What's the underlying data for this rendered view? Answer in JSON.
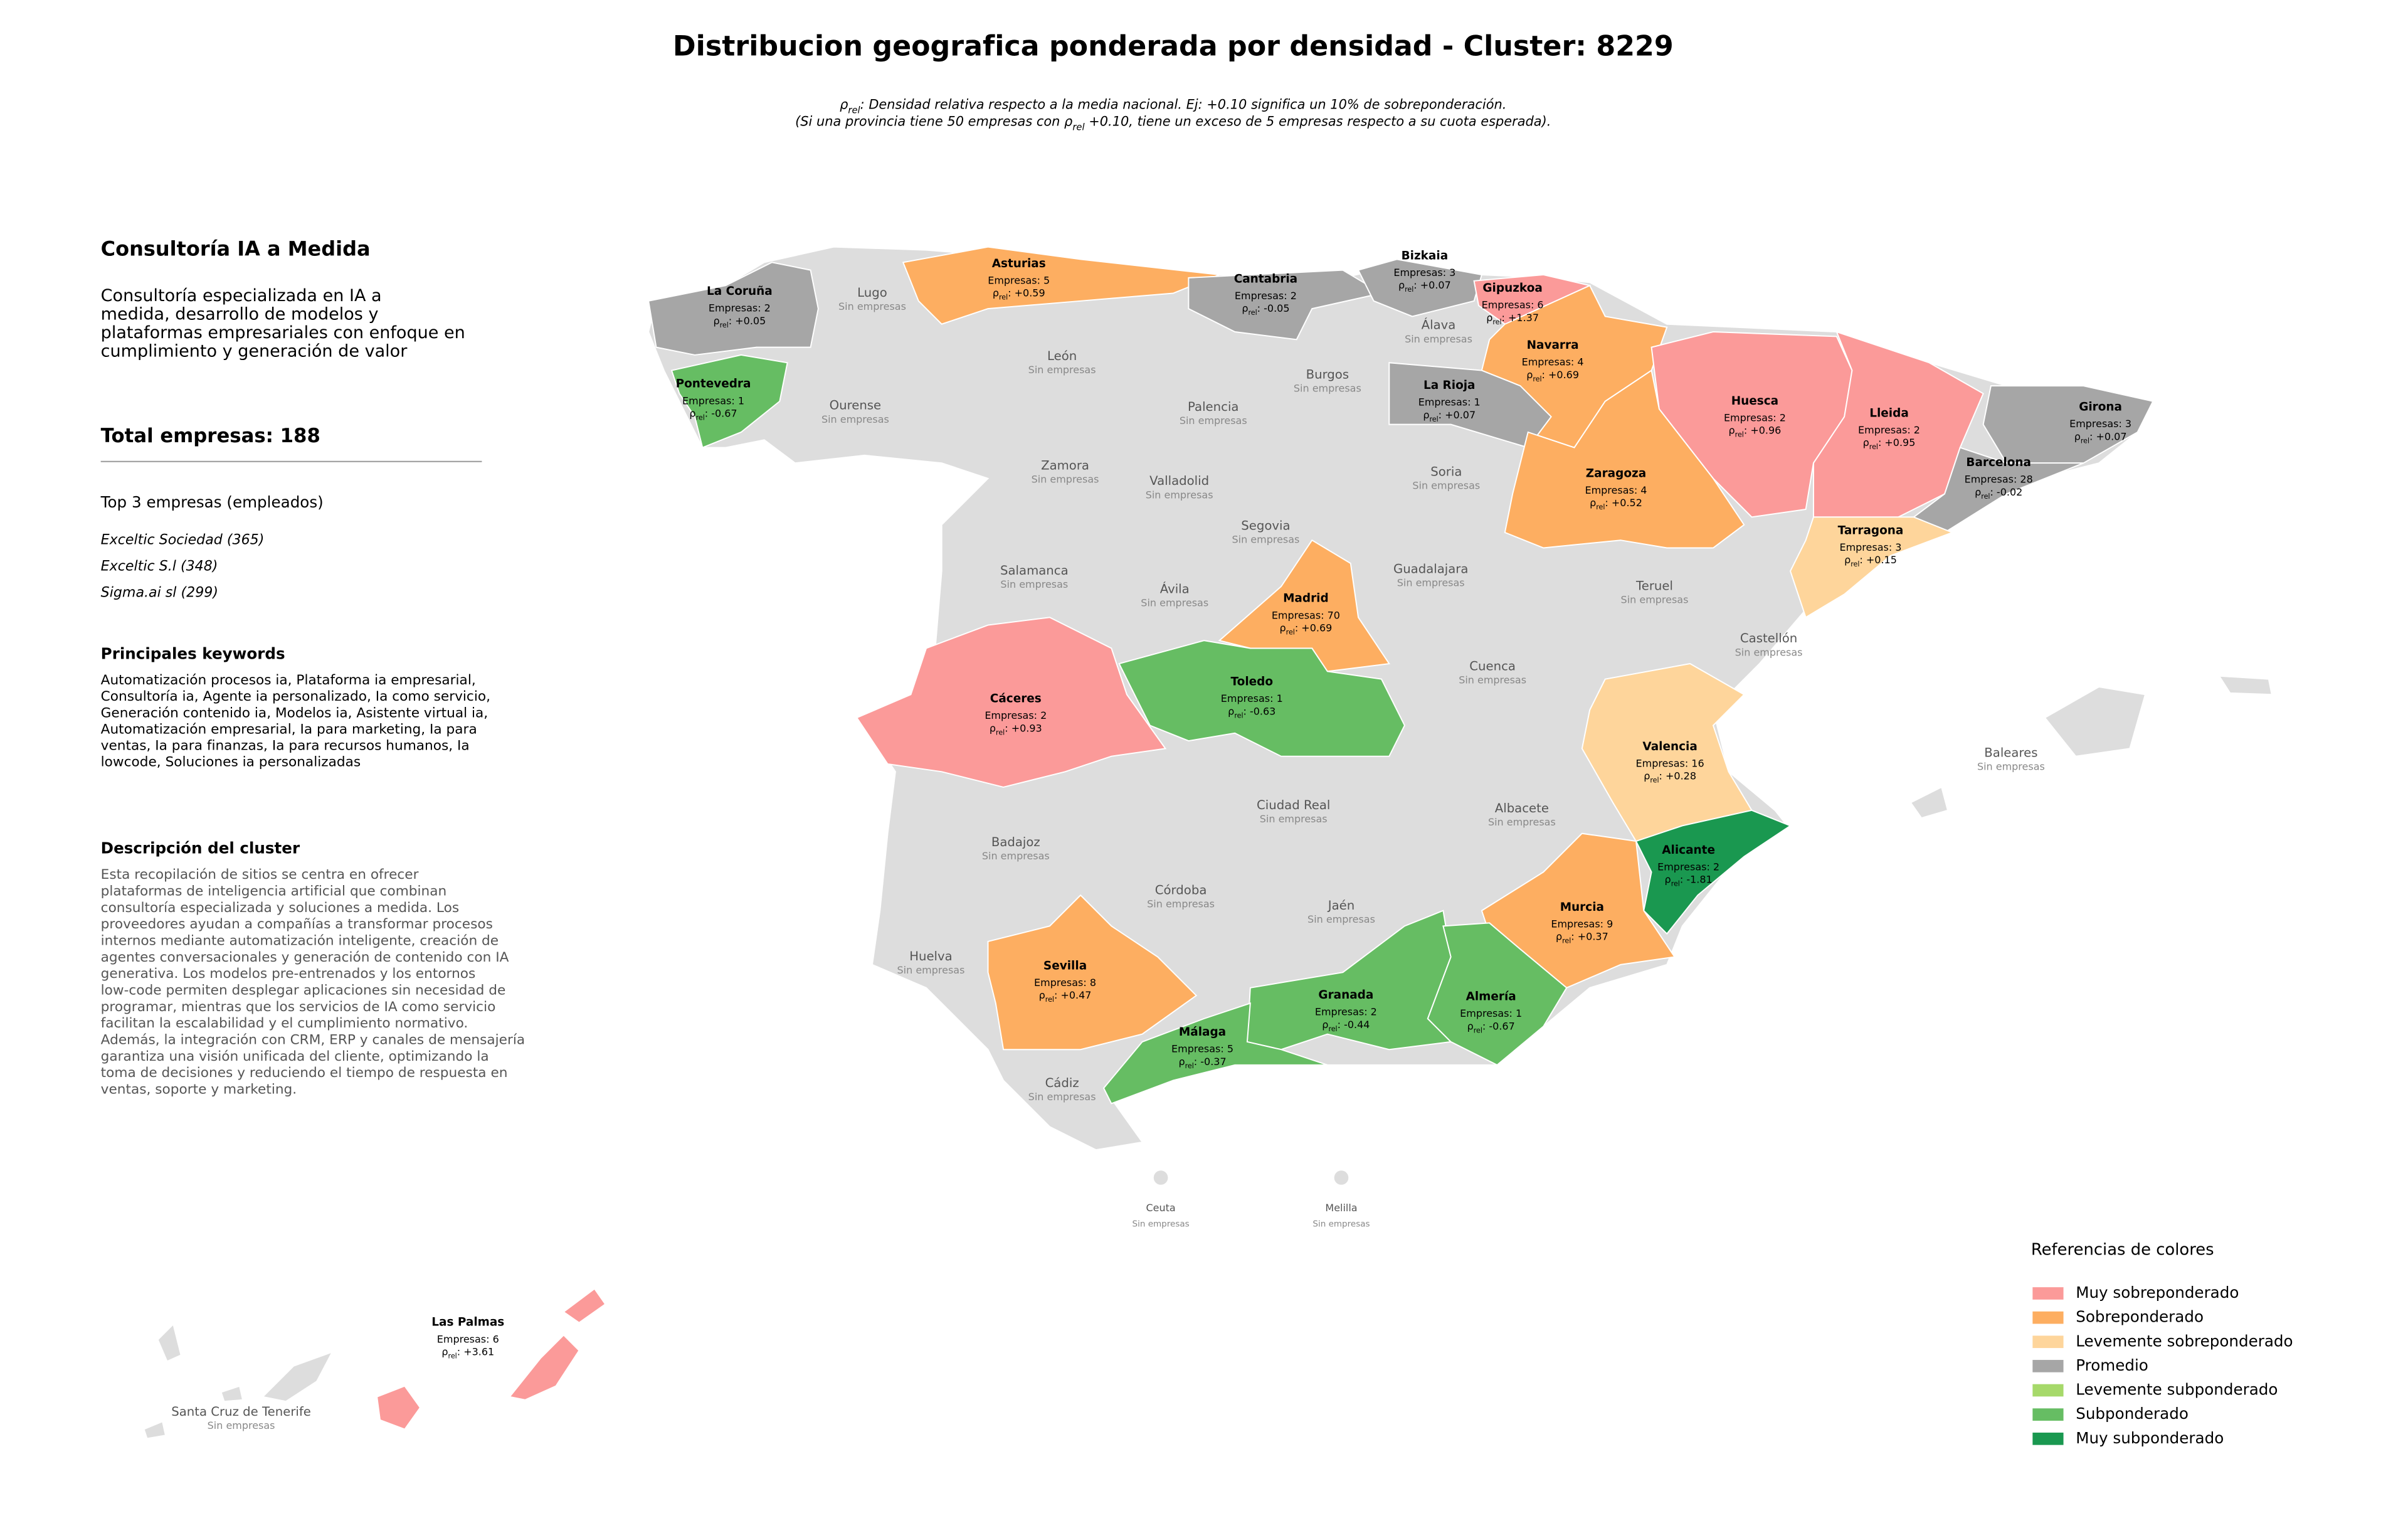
{
  "header": {
    "title": "Distribucion geografica ponderada por densidad - Cluster: 8229",
    "note": [
      {
        "symbol": "ρ",
        "sub": "rel",
        "after": ": Densidad relativa respecto a la media nacional. Ej: +0.10 significa un 10% de sobreponderación."
      },
      {
        "before": "(Si una provincia tiene 50 empresas con ρ",
        "sub": "rel",
        "after": " +0.10, tiene un exceso de 5 empresas respecto a su cuota esperada)."
      }
    ]
  },
  "sidebar": {
    "title": "Consultoría IA a Medida",
    "description": [
      "Consultoría especializada en IA a",
      "medida, desarrollo de modelos y",
      "plataformas empresariales con enfoque en",
      "cumplimiento y generación de valor"
    ],
    "total": "Total empresas: 188",
    "top_heading": "Top 3 empresas (empleados)",
    "top": [
      "Exceltic Sociedad (365)",
      "Exceltic S.l (348)",
      "Sigma.ai sl (299)"
    ],
    "keywords_heading": "Principales keywords",
    "keywords": [
      "Automatización procesos ia, Plataforma ia empresarial,",
      "Consultoría ia, Agente ia personalizado, Ia como servicio,",
      "Generación contenido ia, Modelos ia, Asistente virtual ia,",
      "Automatización empresarial, Ia para marketing, Ia para",
      "ventas, Ia para finanzas, Ia para recursos humanos, Ia",
      "lowcode, Soluciones ia personalizadas"
    ],
    "cluster_heading": "Descripción del cluster",
    "cluster_description": [
      "Esta recopilación de sitios se centra en ofrecer",
      "plataformas de inteligencia artificial que combinan",
      "consultoría especializada y soluciones a medida. Los",
      "proveedores ayudan a compañías a transformar procesos",
      "internos mediante automatización inteligente, creación de",
      "agentes conversacionales y generación de contenido con IA",
      "generativa. Los modelos pre-entrenados y los entornos",
      "low-code permiten desplegar aplicaciones sin necesidad de",
      "programar, mientras que los servicios de IA como servicio",
      "facilitan la escalabilidad y el cumplimiento normativo.",
      "Además, la integración con CRM, ERP y canales de mensajería",
      "garantiza una visión unificada del cliente, optimizando la",
      "toma de decisiones y reduciendo el tiempo de respuesta en",
      "ventas, soporte y marketing."
    ]
  },
  "map": {
    "rho_symbol": "ρ",
    "rho_sub": "rel",
    "provinces": [
      {
        "name": "La Coruña",
        "companies": "Empresas: 2",
        "rho": ": +0.05",
        "color": "#a6a6a6"
      },
      {
        "name": "Asturias",
        "companies": "Empresas: 5",
        "rho": ": +0.59",
        "color": "#fdae61"
      },
      {
        "name": "Cantabria",
        "companies": "Empresas: 2",
        "rho": ": -0.05",
        "color": "#a6a6a6"
      },
      {
        "name": "Bizkaia",
        "companies": "Empresas: 3",
        "rho": ": +0.07",
        "color": "#a6a6a6"
      },
      {
        "name": "Gipuzkoa",
        "companies": "Empresas: 6",
        "rho": ": +1.37",
        "color": "#fb9a99"
      },
      {
        "name": "Navarra",
        "companies": "Empresas: 4",
        "rho": ": +0.69",
        "color": "#fdae61"
      },
      {
        "name": "La Rioja",
        "companies": "Empresas: 1",
        "rho": ": +0.07",
        "color": "#a6a6a6"
      },
      {
        "name": "Pontevedra",
        "companies": "Empresas: 1",
        "rho": ": -0.67",
        "color": "#66bd63"
      },
      {
        "name": "Huesca",
        "companies": "Empresas: 2",
        "rho": ": +0.96",
        "color": "#fb9a99"
      },
      {
        "name": "Lleida",
        "companies": "Empresas: 2",
        "rho": ": +0.95",
        "color": "#fb9a99"
      },
      {
        "name": "Girona",
        "companies": "Empresas: 3",
        "rho": ": +0.07",
        "color": "#a6a6a6"
      },
      {
        "name": "Barcelona",
        "companies": "Empresas: 28",
        "rho": ": -0.02",
        "color": "#a6a6a6"
      },
      {
        "name": "Zaragoza",
        "companies": "Empresas: 4",
        "rho": ": +0.52",
        "color": "#fdae61"
      },
      {
        "name": "Tarragona",
        "companies": "Empresas: 3",
        "rho": ": +0.15",
        "color": "#fed59b"
      },
      {
        "name": "Madrid",
        "companies": "Empresas: 70",
        "rho": ": +0.69",
        "color": "#fdae61"
      },
      {
        "name": "Toledo",
        "companies": "Empresas: 1",
        "rho": ": -0.63",
        "color": "#66bd63"
      },
      {
        "name": "Cáceres",
        "companies": "Empresas: 2",
        "rho": ": +0.93",
        "color": "#fb9a99"
      },
      {
        "name": "Valencia",
        "companies": "Empresas: 16",
        "rho": ": +0.28",
        "color": "#fed59b"
      },
      {
        "name": "Alicante",
        "companies": "Empresas: 2",
        "rho": ": -1.81",
        "color": "#1a9850"
      },
      {
        "name": "Murcia",
        "companies": "Empresas: 9",
        "rho": ": +0.37",
        "color": "#fdae61"
      },
      {
        "name": "Sevilla",
        "companies": "Empresas: 8",
        "rho": ": +0.47",
        "color": "#fdae61"
      },
      {
        "name": "Granada",
        "companies": "Empresas: 2",
        "rho": ": -0.44",
        "color": "#66bd63"
      },
      {
        "name": "Almería",
        "companies": "Empresas: 1",
        "rho": ": -0.67",
        "color": "#66bd63"
      },
      {
        "name": "Málaga",
        "companies": "Empresas: 5",
        "rho": ": -0.37",
        "color": "#66bd63"
      },
      {
        "name": "Las Palmas",
        "companies": "Empresas: 6",
        "rho": ": +3.61",
        "color": "#fb9a99"
      }
    ],
    "empty_provinces": [
      {
        "name": "Lugo",
        "status": "Sin empresas"
      },
      {
        "name": "León",
        "status": "Sin empresas"
      },
      {
        "name": "Ourense",
        "status": "Sin empresas"
      },
      {
        "name": "Burgos",
        "status": "Sin empresas"
      },
      {
        "name": "Palencia",
        "status": "Sin empresas"
      },
      {
        "name": "Álava",
        "status": "Sin empresas"
      },
      {
        "name": "Zamora",
        "status": "Sin empresas"
      },
      {
        "name": "Valladolid",
        "status": "Sin empresas"
      },
      {
        "name": "Soria",
        "status": "Sin empresas"
      },
      {
        "name": "Segovia",
        "status": "Sin empresas"
      },
      {
        "name": "Salamanca",
        "status": "Sin empresas"
      },
      {
        "name": "Guadalajara",
        "status": "Sin empresas"
      },
      {
        "name": "Ávila",
        "status": "Sin empresas"
      },
      {
        "name": "Teruel",
        "status": "Sin empresas"
      },
      {
        "name": "Castellón",
        "status": "Sin empresas"
      },
      {
        "name": "Cuenca",
        "status": "Sin empresas"
      },
      {
        "name": "Ciudad Real",
        "status": "Sin empresas"
      },
      {
        "name": "Albacete",
        "status": "Sin empresas"
      },
      {
        "name": "Badajoz",
        "status": "Sin empresas"
      },
      {
        "name": "Baleares",
        "status": "Sin empresas"
      },
      {
        "name": "Córdoba",
        "status": "Sin empresas"
      },
      {
        "name": "Jaén",
        "status": "Sin empresas"
      },
      {
        "name": "Huelva",
        "status": "Sin empresas"
      },
      {
        "name": "Cádiz",
        "status": "Sin empresas"
      },
      {
        "name": "Ceuta",
        "status": "Sin empresas"
      },
      {
        "name": "Melilla",
        "status": "Sin empresas"
      },
      {
        "name": "Santa Cruz de Tenerife",
        "status": "Sin empresas"
      }
    ]
  },
  "legend": {
    "title": "Referencias de colores",
    "items": [
      {
        "name": "Muy sobreponderado",
        "color": "#fb9a99"
      },
      {
        "name": "Sobreponderado",
        "color": "#fdae61"
      },
      {
        "name": "Levemente sobreponderado",
        "color": "#fed59b"
      },
      {
        "name": "Promedio",
        "color": "#a6a6a6"
      },
      {
        "name": "Levemente subponderado",
        "color": "#a6d96a"
      },
      {
        "name": "Subponderado",
        "color": "#66bd63"
      },
      {
        "name": "Muy subponderado",
        "color": "#1a9850"
      }
    ]
  }
}
